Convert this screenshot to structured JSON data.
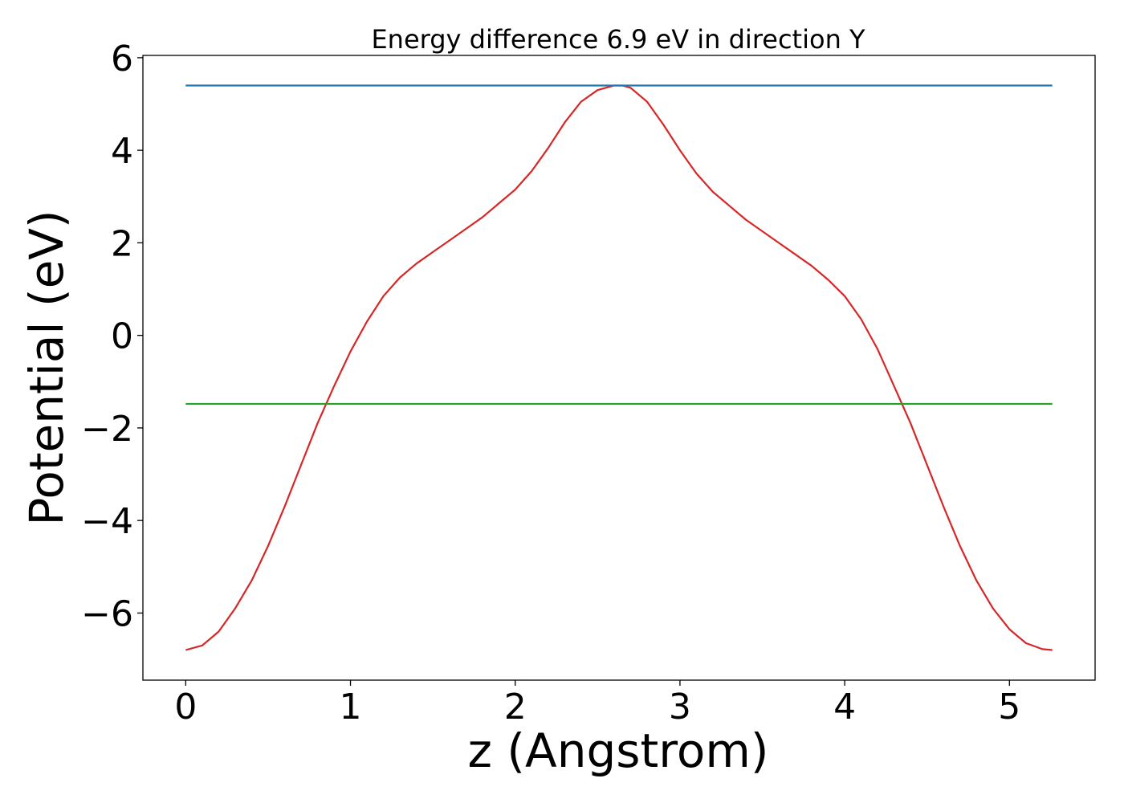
{
  "chart_data": {
    "type": "line",
    "title": "Energy difference 6.9 eV in direction Y",
    "xlabel": "z (Angstrom)",
    "ylabel": "Potential (eV)",
    "xlim": [
      -0.26,
      5.52
    ],
    "ylim": [
      -7.45,
      6.05
    ],
    "x_ticks": [
      0,
      1,
      2,
      3,
      4,
      5
    ],
    "y_ticks": [
      -6,
      -4,
      -2,
      0,
      2,
      4,
      6
    ],
    "x_tick_labels": [
      "0",
      "1",
      "2",
      "3",
      "4",
      "5"
    ],
    "y_tick_labels": [
      "−6",
      "−4",
      "−2",
      "0",
      "2",
      "4",
      "6"
    ],
    "grid": false,
    "series": [
      {
        "color": "#d62728",
        "x": [
          0,
          0.1,
          0.2,
          0.3,
          0.4,
          0.5,
          0.6,
          0.7,
          0.8,
          0.9,
          1.0,
          1.1,
          1.2,
          1.3,
          1.4,
          1.5,
          1.6,
          1.7,
          1.8,
          1.9,
          2.0,
          2.1,
          2.2,
          2.3,
          2.4,
          2.5,
          2.6,
          2.65,
          2.7,
          2.8,
          2.9,
          3.0,
          3.1,
          3.2,
          3.3,
          3.4,
          3.5,
          3.6,
          3.7,
          3.8,
          3.9,
          4.0,
          4.1,
          4.2,
          4.3,
          4.4,
          4.5,
          4.6,
          4.7,
          4.8,
          4.9,
          5.0,
          5.1,
          5.2,
          5.26
        ],
        "y": [
          -6.8,
          -6.7,
          -6.4,
          -5.9,
          -5.3,
          -4.55,
          -3.7,
          -2.8,
          -1.9,
          -1.1,
          -0.35,
          0.3,
          0.85,
          1.25,
          1.55,
          1.8,
          2.05,
          2.3,
          2.55,
          2.85,
          3.15,
          3.55,
          4.05,
          4.6,
          5.05,
          5.3,
          5.4,
          5.4,
          5.35,
          5.05,
          4.55,
          4.0,
          3.5,
          3.1,
          2.8,
          2.5,
          2.25,
          2.0,
          1.75,
          1.5,
          1.2,
          0.85,
          0.35,
          -0.3,
          -1.1,
          -1.9,
          -2.8,
          -3.7,
          -4.55,
          -5.3,
          -5.9,
          -6.35,
          -6.65,
          -6.78,
          -6.8
        ]
      },
      {
        "color": "#1f77b4",
        "x": [
          0,
          5.26
        ],
        "y": [
          5.4,
          5.4
        ]
      },
      {
        "color": "#2ca02c",
        "x": [
          0,
          5.26
        ],
        "y": [
          -1.48,
          -1.48
        ]
      }
    ]
  }
}
